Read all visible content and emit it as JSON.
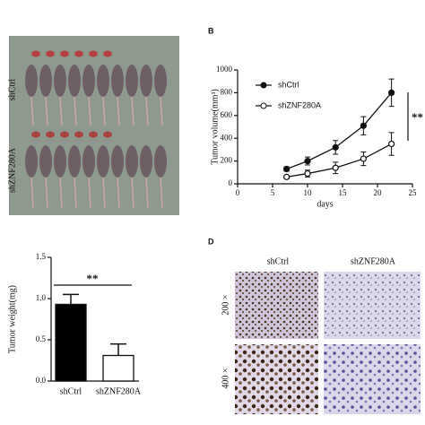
{
  "chart_data": [
    {
      "type": "line",
      "panel": "B",
      "ylabel": "Tumor volume(mm³)",
      "xlabel": "days",
      "annotation": "**",
      "x": [
        7,
        10,
        14,
        18,
        22
      ],
      "series": [
        {
          "name": "shCtrl",
          "color": "#111111",
          "marker": "filled",
          "values": [
            130,
            200,
            320,
            510,
            800
          ],
          "errors": [
            20,
            35,
            60,
            80,
            120
          ]
        },
        {
          "name": "shZNF280A",
          "color": "#111111",
          "marker": "open",
          "values": [
            60,
            90,
            140,
            220,
            350
          ],
          "errors": [
            15,
            30,
            50,
            60,
            100
          ]
        }
      ],
      "xlim": [
        0,
        25
      ],
      "xticks": [
        0,
        5,
        10,
        15,
        20,
        25
      ],
      "ylim": [
        0,
        1000
      ],
      "yticks": [
        0,
        200,
        400,
        600,
        800,
        1000
      ],
      "legend": "upper left"
    },
    {
      "type": "bar",
      "ylabel": "Tumor weight(mg)",
      "annotation": "**",
      "categories": [
        "shCtrl",
        "shZNF280A"
      ],
      "values": [
        0.93,
        0.31
      ],
      "errors": [
        0.12,
        0.14
      ],
      "colors": [
        "#000000",
        "#ffffff"
      ],
      "ylim": [
        0,
        1.5
      ],
      "yticks": [
        {
          "value": 0,
          "label": "0.0"
        },
        0.5,
        {
          "value": 1,
          "label": "1.0"
        },
        1.5
      ]
    }
  ],
  "photos": {
    "mice": {
      "groups": [
        "shCtrl",
        "shZNF280A"
      ]
    },
    "staining": {
      "panel": "D",
      "columns": [
        "shCtrl",
        "shZNF280A"
      ],
      "rows": [
        "200 ×",
        "400 ×"
      ]
    }
  }
}
